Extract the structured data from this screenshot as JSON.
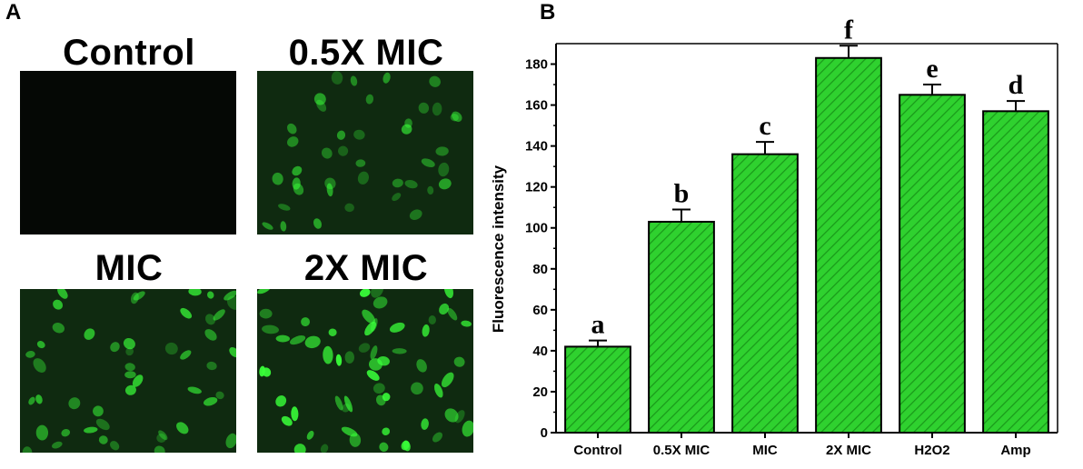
{
  "panel_a": {
    "label": "A",
    "images": [
      {
        "title": "Control",
        "level": 0.0
      },
      {
        "title": "0.5X MIC",
        "level": 0.35
      },
      {
        "title": "MIC",
        "level": 0.6
      },
      {
        "title": "2X MIC",
        "level": 1.0
      }
    ]
  },
  "panel_b": {
    "label": "B"
  },
  "colors": {
    "bar_fill": "#2fd12f",
    "bar_fill_dark": "#1a9a1a",
    "bar_stroke": "#000000",
    "micro_background": "#0f2a10",
    "micro_cell": "#39ff39"
  },
  "chart_data": {
    "type": "bar",
    "categories": [
      "Control",
      "0.5X MIC",
      "MIC",
      "2X MIC",
      "H2O2",
      "Amp"
    ],
    "values": [
      42,
      103,
      136,
      183,
      165,
      157
    ],
    "errors": [
      3,
      6,
      6,
      6,
      5,
      5
    ],
    "significance": [
      "a",
      "b",
      "c",
      "f",
      "e",
      "d"
    ],
    "xlabel": "",
    "ylabel": "Fluorescence intensity",
    "ylim": [
      0,
      190
    ],
    "yticks": [
      0,
      20,
      40,
      60,
      80,
      100,
      120,
      140,
      160,
      180
    ],
    "grid": false,
    "legend": "none",
    "bar_pattern": "diagonal hatch"
  }
}
